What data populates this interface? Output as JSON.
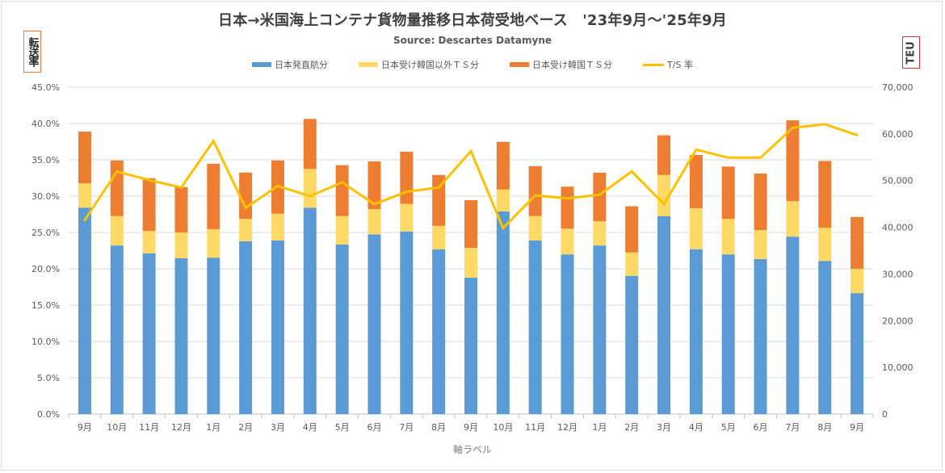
{
  "chart_data": {
    "type": "bar",
    "stacked": true,
    "title": "日本→米国海上コンテナ貨物量推移日本荷受地ベース　'23年9月～'25年9月",
    "subtitle": "Source: Descartes Datamyne",
    "xlabel": "軸ラベル",
    "ylabel_left": "転送率",
    "ylabel_right": "TEU",
    "categories": [
      "9月",
      "10月",
      "11月",
      "12月",
      "1月",
      "2月",
      "3月",
      "4月",
      "5月",
      "6月",
      "7月",
      "8月",
      "9月",
      "10月",
      "11月",
      "12月",
      "1月",
      "2月",
      "3月",
      "4月",
      "5月",
      "6月",
      "7月",
      "8月",
      "9月"
    ],
    "y_left": {
      "min": 0,
      "max": 45,
      "step": 5,
      "ticks": [
        "0.0%",
        "5.0%",
        "10.0%",
        "15.0%",
        "20.0%",
        "25.0%",
        "30.0%",
        "35.0%",
        "40.0%",
        "45.0%"
      ]
    },
    "y_right": {
      "min": 0,
      "max": 70000,
      "step": 10000,
      "ticks": [
        "0",
        "10,000",
        "20,000",
        "30,000",
        "40,000",
        "50,000",
        "60,000",
        "70,000"
      ]
    },
    "grid": true,
    "legend_position": "top",
    "series": [
      {
        "name": "日本発直航分",
        "axis": "right",
        "type": "bar",
        "color": "#5b9bd5",
        "values": [
          44200,
          36100,
          34400,
          33400,
          33500,
          37000,
          37200,
          44200,
          36300,
          38500,
          39100,
          35300,
          29200,
          43400,
          37200,
          34200,
          36100,
          29600,
          42400,
          35300,
          34200,
          33200,
          38000,
          32800,
          25900
        ]
      },
      {
        "name": "日本受け韓国以外ＴＳ分",
        "axis": "right",
        "type": "bar",
        "color": "#ffd966",
        "values": [
          5200,
          6300,
          4800,
          5500,
          6100,
          4800,
          5700,
          8300,
          6100,
          5400,
          5900,
          5000,
          6400,
          4700,
          5200,
          5500,
          5200,
          5000,
          8800,
          8800,
          7600,
          6200,
          7600,
          7100,
          5200
        ]
      },
      {
        "name": "日本受け韓国ＴＳ分",
        "axis": "right",
        "type": "bar",
        "color": "#ed7d31",
        "values": [
          11100,
          11900,
          11300,
          9700,
          14000,
          9900,
          11400,
          10700,
          10900,
          10200,
          11200,
          10900,
          10200,
          10200,
          10700,
          9000,
          10400,
          9900,
          8500,
          11400,
          11200,
          12100,
          17300,
          14300,
          11100
        ]
      },
      {
        "name": "T/S 率",
        "axis": "left",
        "type": "line",
        "color": "#ffc000",
        "values": [
          26.7,
          33.4,
          32.2,
          31.2,
          37.6,
          28.4,
          31.4,
          30.0,
          31.9,
          28.9,
          30.6,
          31.2,
          36.2,
          25.6,
          30.1,
          29.7,
          30.2,
          33.4,
          28.9,
          36.4,
          35.3,
          35.3,
          39.4,
          39.9,
          38.4
        ]
      }
    ]
  }
}
